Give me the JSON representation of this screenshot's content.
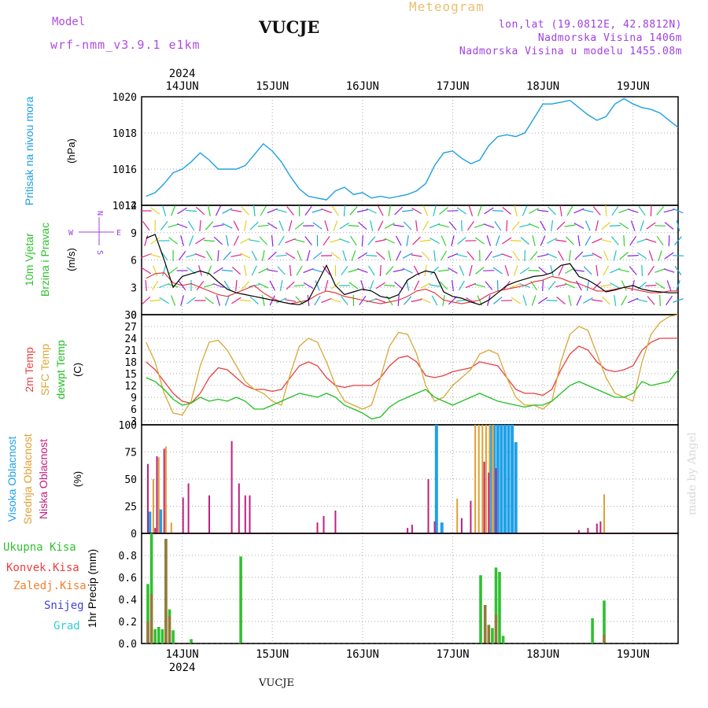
{
  "header": {
    "model_label": "Model",
    "model_name": "wrf-nmm_v3.9.1 e1km",
    "station": "VUCJE",
    "meteogram_label": "Meteogram",
    "coords": "lon,lat (19.0812E, 42.8812N)",
    "altitude": "Nadmorska Visina 1406m",
    "altitude_model": "Nadmorska Visina u modelu 1455.08m"
  },
  "footer": {
    "station": "VUCJE",
    "watermark": "made by Angel"
  },
  "colors": {
    "pressure": "#1fa0e0",
    "wind_label": "#30c030",
    "wind_speed": "#000000",
    "gust": "#e03030",
    "t2m": "#e84040",
    "tsfc": "#d8a838",
    "dewpt": "#20c020",
    "cloud_high": "#20a0e8",
    "cloud_mid": "#e0a030",
    "cloud_low": "#c02080",
    "rain_total": "#30c030",
    "rain_conv": "#e84040",
    "rain_frozen": "#f08030",
    "snow": "#4040e0",
    "hail": "#30d0d0"
  },
  "chart_data": [
    {
      "id": "time_axis",
      "type": "table",
      "year": "2024",
      "days": [
        "14JUN",
        "15JUN",
        "16JUN",
        "17JUN",
        "18JUN",
        "19JUN"
      ]
    },
    {
      "id": "pressure",
      "type": "line",
      "ylabel": "Pritisak na nivou mora",
      "unit": "(hPa)",
      "ylim": [
        1014,
        1020
      ],
      "yticks": [
        1014,
        1016,
        1018,
        1020
      ],
      "grid": true,
      "x": [
        13.6,
        13.7,
        13.8,
        13.9,
        14.0,
        14.1,
        14.2,
        14.3,
        14.4,
        14.5,
        14.6,
        14.7,
        14.8,
        14.9,
        15.0,
        15.1,
        15.2,
        15.3,
        15.4,
        15.5,
        15.6,
        15.7,
        15.8,
        15.9,
        16.0,
        16.1,
        16.2,
        16.3,
        16.4,
        16.5,
        16.6,
        16.7,
        16.8,
        16.9,
        17.0,
        17.1,
        17.2,
        17.3,
        17.4,
        17.5,
        17.6,
        17.7,
        17.8,
        17.9,
        18.0,
        18.1,
        18.2,
        18.3,
        18.4,
        18.5,
        18.6,
        18.7,
        18.8,
        18.9,
        19.0,
        19.1,
        19.2,
        19.3,
        19.4,
        19.5
      ],
      "y": [
        1014.5,
        1014.7,
        1015.2,
        1015.8,
        1016.0,
        1016.4,
        1016.9,
        1016.5,
        1016.0,
        1016.0,
        1016.0,
        1016.2,
        1016.8,
        1017.4,
        1017.0,
        1016.4,
        1015.6,
        1014.9,
        1014.5,
        1014.4,
        1014.3,
        1014.8,
        1015.0,
        1014.6,
        1014.7,
        1014.4,
        1014.5,
        1014.4,
        1014.5,
        1014.6,
        1014.8,
        1015.2,
        1016.2,
        1016.9,
        1017.0,
        1016.6,
        1016.3,
        1016.5,
        1017.3,
        1017.8,
        1017.9,
        1017.8,
        1018.0,
        1018.8,
        1019.6,
        1019.6,
        1019.7,
        1019.8,
        1019.4,
        1019.0,
        1018.7,
        1018.9,
        1019.6,
        1019.9,
        1019.6,
        1019.4,
        1019.3,
        1019.1,
        1018.7,
        1018.3
      ]
    },
    {
      "id": "wind",
      "type": "line",
      "ylabel": "10m Vjetar",
      "ylabel2": "Brzina i Pravac",
      "unit": "(m/s)",
      "ylim": [
        0,
        12
      ],
      "yticks": [
        0,
        3,
        6,
        9,
        12
      ],
      "grid": true,
      "compass": {
        "w": "W",
        "e": "E",
        "n": "N",
        "s": "S"
      },
      "x": [
        13.6,
        13.7,
        13.8,
        13.9,
        14.0,
        14.1,
        14.2,
        14.3,
        14.4,
        14.5,
        14.6,
        14.7,
        14.8,
        14.9,
        15.0,
        15.1,
        15.2,
        15.3,
        15.4,
        15.5,
        15.6,
        15.7,
        15.8,
        15.9,
        16.0,
        16.1,
        16.2,
        16.3,
        16.4,
        16.5,
        16.6,
        16.7,
        16.8,
        16.9,
        17.0,
        17.1,
        17.2,
        17.3,
        17.4,
        17.5,
        17.6,
        17.7,
        17.8,
        17.9,
        18.0,
        18.1,
        18.2,
        18.3,
        18.4,
        18.5,
        18.6,
        18.7,
        18.8,
        18.9,
        19.0,
        19.1,
        19.2,
        19.3,
        19.4,
        19.5
      ],
      "speed": [
        8.4,
        8.8,
        6.0,
        3.0,
        4.2,
        4.5,
        4.8,
        4.5,
        3.6,
        2.8,
        2.4,
        2.2,
        2.0,
        1.8,
        1.6,
        1.4,
        1.2,
        1.1,
        1.6,
        3.5,
        5.4,
        3.2,
        2.2,
        2.5,
        2.8,
        2.6,
        2.0,
        1.8,
        2.2,
        3.8,
        4.4,
        4.8,
        4.6,
        2.5,
        2.0,
        1.8,
        1.4,
        1.1,
        1.6,
        2.4,
        3.2,
        3.6,
        3.9,
        4.2,
        4.3,
        4.6,
        5.4,
        5.6,
        4.2,
        3.8,
        3.2,
        2.5,
        2.7,
        3.0,
        3.2,
        2.8,
        2.6,
        2.5,
        2.4,
        2.4
      ],
      "gust": [
        4.0,
        4.5,
        4.6,
        3.5,
        3.2,
        3.4,
        3.0,
        2.6,
        2.2,
        2.0,
        2.4,
        2.8,
        3.2,
        2.4,
        1.8,
        1.4,
        1.2,
        1.4,
        1.6,
        2.2,
        2.6,
        2.4,
        2.0,
        1.8,
        1.6,
        1.4,
        1.2,
        1.4,
        1.6,
        2.0,
        2.6,
        2.8,
        2.4,
        1.6,
        1.4,
        1.2,
        1.4,
        1.6,
        2.2,
        2.6,
        2.8,
        3.0,
        3.2,
        3.6,
        3.8,
        4.2,
        4.0,
        3.6,
        3.4,
        3.0,
        2.6,
        2.6,
        2.8,
        3.0,
        2.8,
        2.6,
        2.4,
        2.4,
        2.6,
        2.6
      ]
    },
    {
      "id": "temperature",
      "type": "line",
      "ylabels": [
        "2m Temp",
        "SFC Temp",
        "dewpt Temp"
      ],
      "unit": "(C)",
      "ylim": [
        2,
        30
      ],
      "yticks": [
        3,
        6,
        9,
        12,
        15,
        18,
        21,
        24,
        27,
        30
      ],
      "grid": true,
      "series": [
        {
          "name": "2m Temp",
          "color": "#e84040",
          "x": [
            13.6,
            13.7,
            13.8,
            13.9,
            14.0,
            14.1,
            14.2,
            14.3,
            14.4,
            14.5,
            14.6,
            14.7,
            14.8,
            14.9,
            15.0,
            15.1,
            15.2,
            15.3,
            15.4,
            15.5,
            15.6,
            15.7,
            15.8,
            15.9,
            16.0,
            16.1,
            16.2,
            16.3,
            16.4,
            16.5,
            16.6,
            16.7,
            16.8,
            16.9,
            17.0,
            17.1,
            17.2,
            17.3,
            17.4,
            17.5,
            17.6,
            17.7,
            17.8,
            17.9,
            18.0,
            18.1,
            18.2,
            18.3,
            18.4,
            18.5,
            18.6,
            18.7,
            18.8,
            18.9,
            19.0,
            19.1,
            19.2,
            19.3,
            19.4,
            19.5
          ],
          "y": [
            18,
            16,
            13,
            10,
            8,
            7.5,
            10,
            14,
            16.5,
            16,
            14,
            12,
            11,
            11,
            10.5,
            11,
            14,
            17,
            18,
            17,
            14,
            12,
            11.5,
            12,
            12,
            12,
            14,
            17,
            19,
            19.5,
            18,
            14.5,
            14,
            14.5,
            15.5,
            16,
            16.5,
            18,
            17.5,
            17,
            14,
            11,
            10,
            10,
            9.5,
            11,
            16,
            20,
            22,
            21,
            18,
            16,
            15.5,
            16,
            17,
            21,
            23,
            24,
            24,
            24
          ]
        },
        {
          "name": "SFC Temp",
          "color": "#d8a838",
          "x": [
            13.6,
            13.7,
            13.8,
            13.9,
            14.0,
            14.1,
            14.2,
            14.3,
            14.4,
            14.5,
            14.6,
            14.7,
            14.8,
            14.9,
            15.0,
            15.1,
            15.2,
            15.3,
            15.4,
            15.5,
            15.6,
            15.7,
            15.8,
            15.9,
            16.0,
            16.1,
            16.2,
            16.3,
            16.4,
            16.5,
            16.6,
            16.7,
            16.8,
            16.9,
            17.0,
            17.1,
            17.2,
            17.3,
            17.4,
            17.5,
            17.6,
            17.7,
            17.8,
            17.9,
            18.0,
            18.1,
            18.2,
            18.3,
            18.4,
            18.5,
            18.6,
            18.7,
            18.8,
            18.9,
            19.0,
            19.1,
            19.2,
            19.3,
            19.4,
            19.5
          ],
          "y": [
            23,
            18,
            10,
            5,
            4.5,
            8,
            17,
            23,
            23.5,
            21,
            17,
            13,
            11,
            10,
            8,
            7,
            15,
            22,
            24,
            23,
            18,
            12,
            8,
            7,
            6,
            7,
            14,
            22,
            25.5,
            25,
            20,
            12,
            8,
            9,
            12,
            14,
            16,
            20,
            21,
            20,
            14,
            9,
            7,
            7,
            6,
            8,
            18,
            25,
            27,
            26,
            20,
            14,
            10,
            9,
            8,
            18,
            25,
            28,
            29.5,
            30
          ]
        },
        {
          "name": "dewpt Temp",
          "color": "#20c020",
          "x": [
            13.6,
            13.7,
            13.8,
            13.9,
            14.0,
            14.1,
            14.2,
            14.3,
            14.4,
            14.5,
            14.6,
            14.7,
            14.8,
            14.9,
            15.0,
            15.1,
            15.2,
            15.3,
            15.4,
            15.5,
            15.6,
            15.7,
            15.8,
            15.9,
            16.0,
            16.1,
            16.2,
            16.3,
            16.4,
            16.5,
            16.6,
            16.7,
            16.8,
            16.9,
            17.0,
            17.1,
            17.2,
            17.3,
            17.4,
            17.5,
            17.6,
            17.7,
            17.8,
            17.9,
            18.0,
            18.1,
            18.2,
            18.3,
            18.4,
            18.5,
            18.6,
            18.7,
            18.8,
            18.9,
            19.0,
            19.1,
            19.2,
            19.3,
            19.4,
            19.5
          ],
          "y": [
            14,
            13,
            11,
            8.5,
            7,
            7.5,
            9,
            8,
            8.5,
            8,
            9,
            8,
            6,
            6,
            7,
            8,
            9,
            10,
            9.5,
            9,
            10,
            9,
            7,
            6,
            5,
            3.5,
            4,
            6.5,
            8,
            9,
            10,
            11,
            9,
            8,
            7,
            8,
            9,
            10,
            9,
            8,
            7.5,
            7,
            6.5,
            7,
            7,
            8,
            10,
            12,
            13,
            12,
            11,
            10,
            9,
            9,
            10,
            13,
            12,
            12.5,
            13,
            16
          ]
        }
      ]
    },
    {
      "id": "clouds",
      "type": "bar",
      "ylabels": [
        "Visoka Oblacnost",
        "Srednja Oblacnost",
        "Niska Oblacnost"
      ],
      "unit": "(%)",
      "ylim": [
        0,
        100
      ],
      "yticks": [
        0,
        25,
        50,
        75,
        100
      ],
      "grid": true,
      "series": [
        {
          "name": "Visoka Oblacnost",
          "color": "#20a0e8",
          "x": [
            13.64,
            13.76,
            16.82,
            16.88,
            17.42,
            17.46,
            17.5,
            17.54,
            17.58,
            17.62,
            17.66,
            17.7
          ],
          "y": [
            20,
            22,
            100,
            10,
            100,
            100,
            100,
            100,
            100,
            100,
            100,
            84
          ]
        },
        {
          "name": "Srednja Oblacnost",
          "color": "#e0a030",
          "x": [
            13.68,
            13.74,
            13.82,
            13.88,
            17.05,
            17.25,
            17.29,
            17.33,
            17.37,
            17.41,
            17.45,
            18.68
          ],
          "y": [
            50,
            70,
            80,
            10,
            32,
            100,
            100,
            100,
            100,
            100,
            100,
            36
          ]
        },
        {
          "name": "Niska Oblacnost",
          "color": "#c02080",
          "x": [
            13.62,
            13.7,
            13.72,
            13.8,
            14.01,
            14.07,
            14.3,
            14.55,
            14.63,
            14.7,
            14.75,
            15.5,
            15.57,
            15.7,
            16.5,
            16.55,
            16.73,
            16.8,
            17.1,
            17.2,
            17.35,
            17.4,
            17.48,
            18.4,
            18.5,
            18.6,
            18.64
          ],
          "y": [
            64,
            5,
            71,
            78,
            33,
            46,
            35,
            85,
            46,
            35,
            35,
            10,
            16,
            21,
            5,
            8,
            50,
            11,
            14,
            30,
            66,
            56,
            60,
            3,
            5,
            9,
            11
          ]
        }
      ]
    },
    {
      "id": "precip",
      "type": "bar",
      "legend": [
        "Ukupna Kisa",
        "Konvek.Kisa",
        "Zaledj.Kisa",
        "Snijeg",
        "Grad"
      ],
      "ylabel": "1hr Precip (mm)",
      "ylim": [
        0,
        1.0
      ],
      "yticks": [
        0,
        0.2,
        0.4,
        0.6,
        0.8
      ],
      "grid": true,
      "series": [
        {
          "name": "Ukupna Kisa",
          "color": "#30c030",
          "x": [
            13.62,
            13.66,
            13.7,
            13.74,
            13.78,
            13.82,
            13.86,
            13.9,
            14.1,
            14.65,
            17.31,
            17.36,
            17.4,
            17.44,
            17.48,
            17.52,
            17.56,
            18.55,
            18.68
          ],
          "y": [
            0.54,
            1.0,
            0.13,
            0.15,
            0.13,
            0.95,
            0.31,
            0.12,
            0.04,
            0.79,
            0.62,
            0.35,
            0.17,
            0.14,
            0.69,
            0.65,
            0.07,
            0.23,
            0.39
          ]
        },
        {
          "name": "Konvek.Kisa",
          "color": "#e84040",
          "x": [
            13.62,
            13.66,
            13.82,
            13.86,
            17.36,
            17.4,
            17.48,
            18.68
          ],
          "y": [
            0.2,
            0.45,
            0.95,
            0.25,
            0.35,
            0.16,
            0.26,
            0.08
          ]
        }
      ]
    }
  ]
}
